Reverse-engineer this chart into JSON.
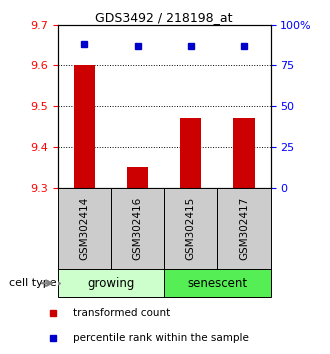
{
  "title": "GDS3492 / 218198_at",
  "samples": [
    "GSM302414",
    "GSM302416",
    "GSM302415",
    "GSM302417"
  ],
  "bar_values": [
    9.6,
    9.35,
    9.47,
    9.47
  ],
  "bar_bottom": 9.3,
  "percentile_values": [
    88,
    87,
    87,
    87
  ],
  "ylim": [
    9.3,
    9.7
  ],
  "yticks_left": [
    9.3,
    9.4,
    9.5,
    9.6,
    9.7
  ],
  "yticks_right": [
    0,
    25,
    50,
    75,
    100
  ],
  "yticks_right_labels": [
    "0",
    "25",
    "50",
    "75",
    "100%"
  ],
  "cell_type_groups": [
    {
      "label": "growing",
      "start": 0,
      "end": 2,
      "color": "#ccffcc"
    },
    {
      "label": "senescent",
      "start": 2,
      "end": 4,
      "color": "#55ee55"
    }
  ],
  "bar_color": "#cc0000",
  "dot_color": "#0000cc",
  "grid_yticks": [
    9.4,
    9.5,
    9.6
  ],
  "legend_items": [
    {
      "color": "#cc0000",
      "label": "transformed count"
    },
    {
      "color": "#0000cc",
      "label": "percentile rank within the sample"
    }
  ],
  "sample_area_color": "#cccccc",
  "cell_type_label": "cell type"
}
